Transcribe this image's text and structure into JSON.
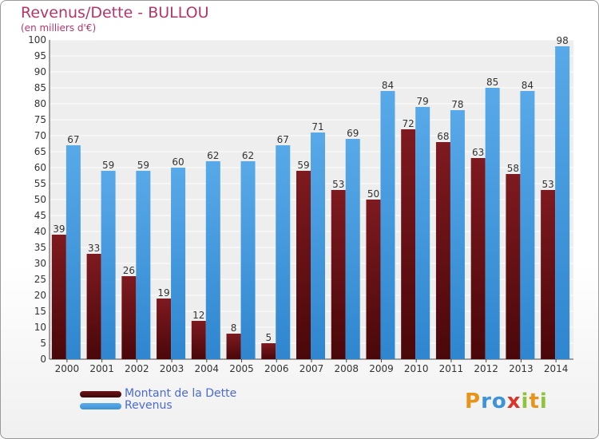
{
  "title": "Revenus/Dette - BULLOU",
  "subtitle": "(en milliers d'€)",
  "chart_data": {
    "type": "bar",
    "categories": [
      "2000",
      "2001",
      "2002",
      "2003",
      "2004",
      "2005",
      "2006",
      "2007",
      "2008",
      "2009",
      "2010",
      "2011",
      "2012",
      "2013",
      "2014"
    ],
    "series": [
      {
        "name": "Montant de la Dette",
        "color": "#6e1318",
        "values": [
          39,
          33,
          26,
          19,
          12,
          8,
          5,
          59,
          53,
          50,
          72,
          68,
          63,
          58,
          53
        ]
      },
      {
        "name": "Revenus",
        "color": "#3d93d8",
        "values": [
          67,
          59,
          59,
          60,
          62,
          62,
          67,
          71,
          69,
          84,
          79,
          78,
          85,
          84,
          98
        ]
      }
    ],
    "ylim": [
      0,
      100
    ],
    "ytick_step": 5,
    "grid": true,
    "xlabel": "",
    "ylabel": ""
  },
  "legend": {
    "items": [
      {
        "label": "Montant de la Dette",
        "color": "#6e1318"
      },
      {
        "label": "Revenus",
        "color": "#3d93d8"
      }
    ]
  },
  "logo": {
    "text": "Proxiti",
    "letters": [
      {
        "ch": "P",
        "color": "#e8941a"
      },
      {
        "ch": "r",
        "color": "#3d93d8"
      },
      {
        "ch": "o",
        "color": "#3d93d8"
      },
      {
        "ch": "x",
        "color": "#d8352a"
      },
      {
        "ch": "i",
        "color": "#8cc43c"
      },
      {
        "ch": "t",
        "color": "#e8941a"
      },
      {
        "ch": "i",
        "color": "#8cc43c"
      }
    ]
  }
}
